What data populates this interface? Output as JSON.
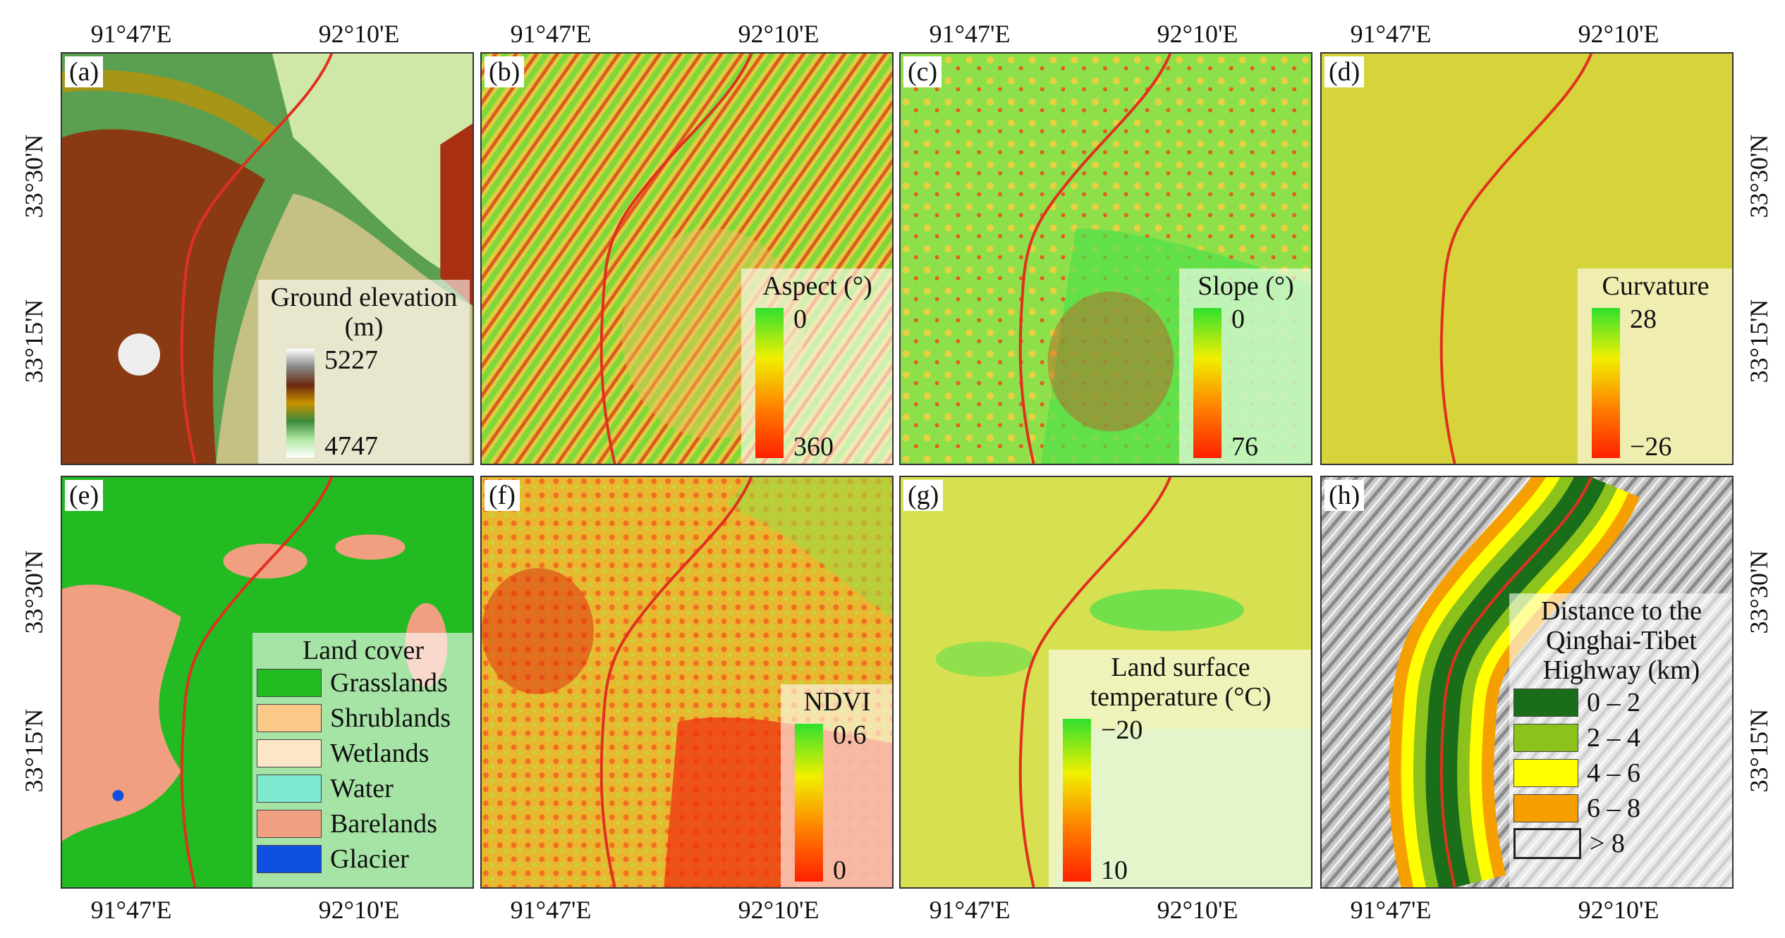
{
  "lon_labels": [
    "91°47'E",
    "92°10'E"
  ],
  "lat_labels": [
    "33°30'N",
    "33°15'N"
  ],
  "panels": [
    {
      "label": "(a)",
      "legend": {
        "title": "Ground elevation (m)",
        "top": "5227",
        "bottom": "4747"
      }
    },
    {
      "label": "(b)",
      "legend": {
        "title": "Aspect (°)",
        "top": "0",
        "bottom": "360"
      }
    },
    {
      "label": "(c)",
      "legend": {
        "title": "Slope (°)",
        "top": "0",
        "bottom": "76"
      }
    },
    {
      "label": "(d)",
      "legend": {
        "title": "Curvature",
        "top": "28",
        "bottom": "−26"
      }
    },
    {
      "label": "(e)",
      "legend": {
        "title": "Land cover",
        "classes": [
          {
            "name": "Grasslands",
            "color": "#22bb22"
          },
          {
            "name": "Shrublands",
            "color": "#fcc98a"
          },
          {
            "name": "Wetlands",
            "color": "#fde6c8"
          },
          {
            "name": "Water",
            "color": "#7fe8d0"
          },
          {
            "name": "Barelands",
            "color": "#f0a080"
          },
          {
            "name": "Glacier",
            "color": "#1050e0"
          }
        ]
      }
    },
    {
      "label": "(f)",
      "legend": {
        "title": "NDVI",
        "top": "0.6",
        "bottom": "0"
      }
    },
    {
      "label": "(g)",
      "legend": {
        "title": "Land surface temperature (°C)",
        "top": "−20",
        "bottom": "10"
      }
    },
    {
      "label": "(h)",
      "legend": {
        "title": "Distance to the Qinghai-Tibet Highway (km)",
        "classes": [
          {
            "name": "0 – 2",
            "color": "#1a6e1a"
          },
          {
            "name": "2 – 4",
            "color": "#8bc21b"
          },
          {
            "name": "4 – 6",
            "color": "#ffff00"
          },
          {
            "name": "6 – 8",
            "color": "#f5a000"
          },
          {
            "name": "> 8",
            "color": "none"
          }
        ]
      }
    }
  ]
}
